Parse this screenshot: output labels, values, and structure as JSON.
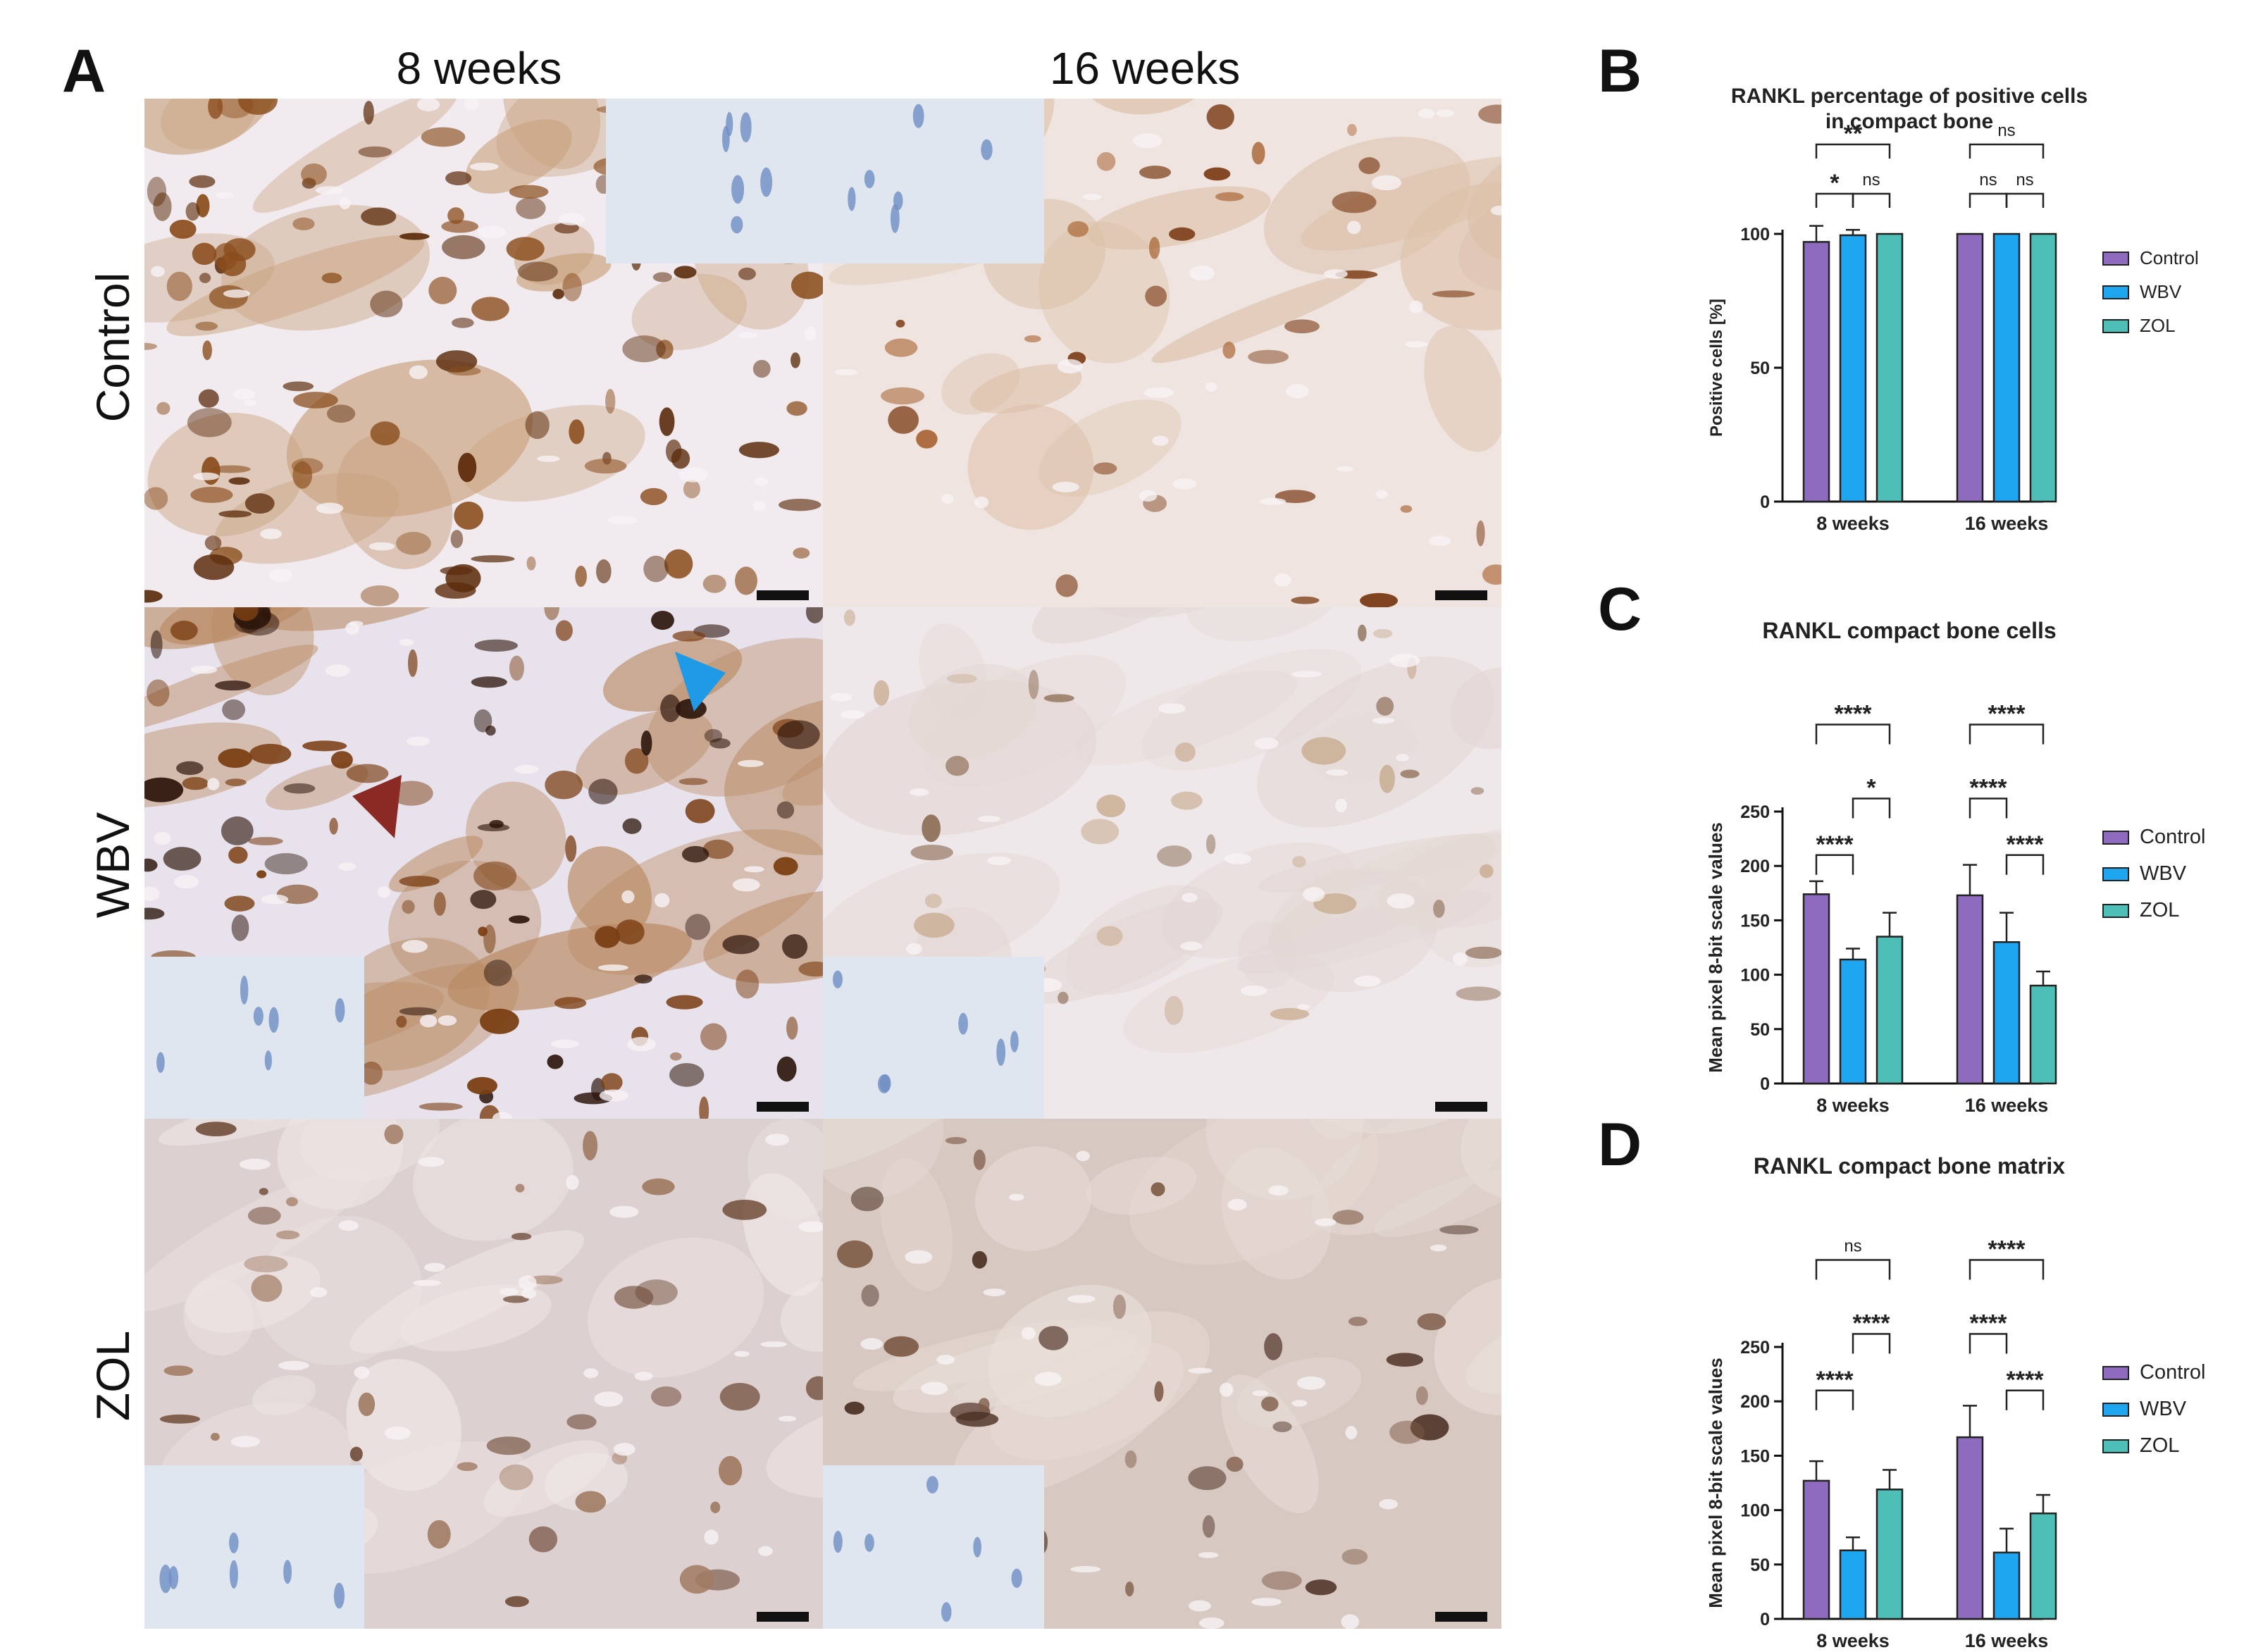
{
  "panel_letters": {
    "a": "A",
    "b": "B",
    "c": "C",
    "d": "D"
  },
  "micrograph": {
    "columns": [
      "8 weeks",
      "16 weeks"
    ],
    "rows": [
      "Control",
      "WBV",
      "ZOL"
    ]
  },
  "colors": {
    "control": "#8E6BBE",
    "wbv": "#1EA6F0",
    "zol": "#4DBFB6",
    "stain_dark": "#6b3a12",
    "stain_mid": "#b07a44",
    "bone_light": "#e9e2e8",
    "inset_blue": "#dfe6ef"
  },
  "chart_data": [
    {
      "id": "B",
      "type": "bar",
      "title": "RANKL percentage of positive cells\nin compact bone",
      "ylabel": "Positive cells [%]",
      "ylim": [
        0,
        100
      ],
      "yticks": [
        0,
        50,
        100
      ],
      "categories": [
        "8 weeks",
        "16 weeks"
      ],
      "series": [
        {
          "name": "Control",
          "values": [
            97,
            100
          ],
          "errors": [
            6,
            0
          ]
        },
        {
          "name": "WBV",
          "values": [
            99.5,
            100
          ],
          "errors": [
            2,
            0
          ]
        },
        {
          "name": "ZOL",
          "values": [
            100,
            100
          ],
          "errors": [
            0,
            0
          ]
        }
      ],
      "significance": [
        {
          "group": 0,
          "from": 0,
          "to": 2,
          "label": "**",
          "level": 2
        },
        {
          "group": 0,
          "from": 0,
          "to": 1,
          "label": "*",
          "level": 1
        },
        {
          "group": 0,
          "from": 1,
          "to": 2,
          "label": "ns",
          "level": 1
        },
        {
          "group": 1,
          "from": 0,
          "to": 2,
          "label": "ns",
          "level": 2
        },
        {
          "group": 1,
          "from": 0,
          "to": 1,
          "label": "ns",
          "level": 1
        },
        {
          "group": 1,
          "from": 1,
          "to": 2,
          "label": "ns",
          "level": 1
        }
      ],
      "legend": [
        "Control",
        "WBV",
        "ZOL"
      ],
      "legend_position": "right"
    },
    {
      "id": "C",
      "type": "bar",
      "title": "RANKL compact bone cells",
      "ylabel": "Mean pixel 8-bit scale values",
      "ylim": [
        0,
        250
      ],
      "yticks": [
        0,
        50,
        100,
        150,
        200,
        250
      ],
      "categories": [
        "8 weeks",
        "16 weeks"
      ],
      "series": [
        {
          "name": "Control",
          "values": [
            174,
            173
          ],
          "errors": [
            12,
            28
          ]
        },
        {
          "name": "WBV",
          "values": [
            114,
            130
          ],
          "errors": [
            10,
            27
          ]
        },
        {
          "name": "ZOL",
          "values": [
            135,
            90
          ],
          "errors": [
            22,
            13
          ]
        }
      ],
      "significance": [
        {
          "group": 0,
          "from": 0,
          "to": 2,
          "label": "****",
          "level": 3
        },
        {
          "group": 0,
          "from": 1,
          "to": 2,
          "label": "*",
          "level": 2
        },
        {
          "group": 0,
          "from": 0,
          "to": 1,
          "label": "****",
          "level": 1
        },
        {
          "group": 1,
          "from": 0,
          "to": 2,
          "label": "****",
          "level": 3
        },
        {
          "group": 1,
          "from": 0,
          "to": 1,
          "label": "****",
          "level": 2
        },
        {
          "group": 1,
          "from": 1,
          "to": 2,
          "label": "****",
          "level": 1
        }
      ],
      "legend": [
        "Control",
        "WBV",
        "ZOL"
      ],
      "legend_position": "right"
    },
    {
      "id": "D",
      "type": "bar",
      "title": "RANKL compact bone matrix",
      "ylabel": "Mean pixel 8-bit scale values",
      "ylim": [
        0,
        250
      ],
      "yticks": [
        0,
        50,
        100,
        150,
        200,
        250
      ],
      "categories": [
        "8 weeks",
        "16 weeks"
      ],
      "series": [
        {
          "name": "Control",
          "values": [
            127,
            167
          ],
          "errors": [
            18,
            29
          ]
        },
        {
          "name": "WBV",
          "values": [
            63,
            61
          ],
          "errors": [
            12,
            22
          ]
        },
        {
          "name": "ZOL",
          "values": [
            119,
            97
          ],
          "errors": [
            18,
            17
          ]
        }
      ],
      "significance": [
        {
          "group": 0,
          "from": 0,
          "to": 2,
          "label": "ns",
          "level": 3
        },
        {
          "group": 0,
          "from": 1,
          "to": 2,
          "label": "****",
          "level": 2
        },
        {
          "group": 0,
          "from": 0,
          "to": 1,
          "label": "****",
          "level": 1
        },
        {
          "group": 1,
          "from": 0,
          "to": 2,
          "label": "****",
          "level": 3
        },
        {
          "group": 1,
          "from": 0,
          "to": 1,
          "label": "****",
          "level": 2
        },
        {
          "group": 1,
          "from": 1,
          "to": 2,
          "label": "****",
          "level": 1
        }
      ],
      "legend": [
        "Control",
        "WBV",
        "ZOL"
      ],
      "legend_position": "right"
    }
  ]
}
